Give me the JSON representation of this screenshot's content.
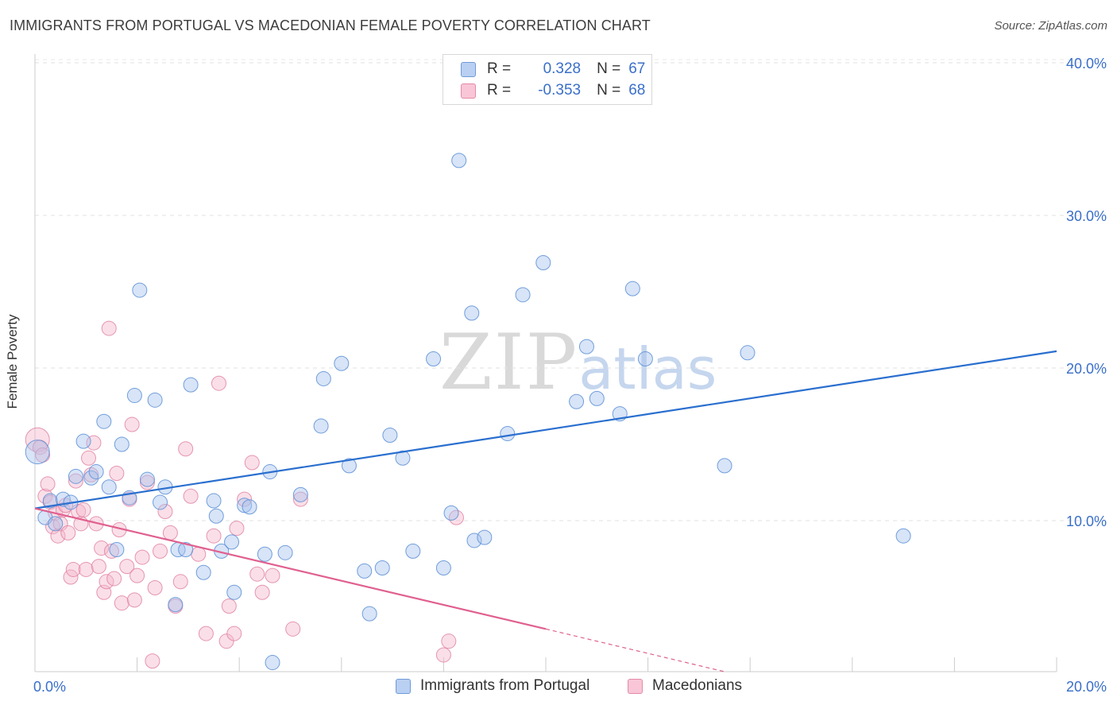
{
  "title": "IMMIGRANTS FROM PORTUGAL VS MACEDONIAN FEMALE POVERTY CORRELATION CHART",
  "source": "Source: ZipAtlas.com",
  "watermark": {
    "part1": "ZIP",
    "part2": "atlas"
  },
  "legend_top": [
    {
      "r_label": "R =",
      "r_value": "0.328",
      "n_label": "N =",
      "n_value": "67"
    },
    {
      "r_label": "R =",
      "r_value": "-0.353",
      "n_label": "N =",
      "n_value": "68"
    }
  ],
  "colors": {
    "blue": "#a8c4ee",
    "blue_stroke": "#5b8fd6",
    "blue_line": "#2a6fcf",
    "pink": "#f5b8cc",
    "pink_stroke": "#e07ea0",
    "pink_line": "#e0608f",
    "axis_text": "#3a6fc9"
  },
  "chart_data": {
    "type": "scatter",
    "title": "IMMIGRANTS FROM PORTUGAL VS MACEDONIAN FEMALE POVERTY CORRELATION CHART",
    "xlabel": "",
    "ylabel": "Female Poverty",
    "xlim": [
      0,
      20
    ],
    "ylim": [
      0,
      42
    ],
    "x_tick_labels": [
      "0.0%",
      "20.0%"
    ],
    "y_ticks": [
      10,
      20,
      30,
      40
    ],
    "y_tick_labels": [
      "10.0%",
      "20.0%",
      "30.0%",
      "40.0%"
    ],
    "series": [
      {
        "name": "Immigrants from Portugal",
        "r": 0.328,
        "n": 67,
        "trend": {
          "x": [
            0,
            20
          ],
          "y": [
            10.8,
            21.1
          ]
        },
        "points": [
          [
            0.05,
            14.5
          ],
          [
            0.2,
            10.2
          ],
          [
            0.3,
            11.3
          ],
          [
            0.4,
            9.8
          ],
          [
            0.55,
            11.4
          ],
          [
            0.7,
            11.2
          ],
          [
            0.8,
            12.9
          ],
          [
            0.95,
            15.2
          ],
          [
            1.1,
            12.8
          ],
          [
            1.2,
            13.2
          ],
          [
            1.35,
            16.5
          ],
          [
            1.45,
            12.2
          ],
          [
            1.6,
            8.1
          ],
          [
            1.7,
            15.0
          ],
          [
            1.85,
            11.5
          ],
          [
            1.95,
            18.2
          ],
          [
            2.05,
            25.1
          ],
          [
            2.2,
            12.7
          ],
          [
            2.35,
            17.9
          ],
          [
            2.45,
            11.2
          ],
          [
            2.55,
            12.2
          ],
          [
            2.8,
            8.1
          ],
          [
            2.95,
            8.1
          ],
          [
            3.05,
            18.9
          ],
          [
            3.3,
            6.6
          ],
          [
            3.5,
            11.3
          ],
          [
            3.55,
            10.3
          ],
          [
            3.65,
            8.0
          ],
          [
            3.85,
            8.6
          ],
          [
            3.9,
            5.3
          ],
          [
            4.1,
            11.0
          ],
          [
            4.2,
            10.9
          ],
          [
            4.5,
            7.8
          ],
          [
            4.6,
            13.2
          ],
          [
            4.65,
            0.7
          ],
          [
            4.9,
            7.9
          ],
          [
            5.2,
            11.7
          ],
          [
            5.6,
            16.2
          ],
          [
            5.65,
            19.3
          ],
          [
            6.0,
            20.3
          ],
          [
            6.15,
            13.6
          ],
          [
            6.45,
            6.7
          ],
          [
            6.55,
            3.9
          ],
          [
            6.8,
            6.9
          ],
          [
            6.95,
            15.6
          ],
          [
            7.2,
            14.1
          ],
          [
            7.4,
            8.0
          ],
          [
            7.8,
            20.6
          ],
          [
            8.0,
            6.9
          ],
          [
            8.15,
            10.5
          ],
          [
            8.3,
            33.6
          ],
          [
            8.55,
            23.6
          ],
          [
            8.6,
            8.7
          ],
          [
            8.8,
            8.9
          ],
          [
            9.25,
            15.7
          ],
          [
            9.55,
            24.8
          ],
          [
            9.95,
            26.9
          ],
          [
            10.6,
            17.8
          ],
          [
            10.8,
            21.4
          ],
          [
            11.0,
            18.0
          ],
          [
            11.45,
            17.0
          ],
          [
            11.7,
            25.2
          ],
          [
            11.95,
            20.6
          ],
          [
            13.5,
            13.6
          ],
          [
            13.95,
            21.0
          ],
          [
            17.0,
            9.0
          ],
          [
            2.75,
            4.5
          ]
        ]
      },
      {
        "name": "Macedonians",
        "r": -0.353,
        "n": 68,
        "trend": {
          "x": [
            0,
            10
          ],
          "y": [
            10.8,
            2.9
          ]
        },
        "trend_dashed": {
          "x": [
            10,
            13.5
          ],
          "y": [
            2.9,
            0.1
          ]
        },
        "points": [
          [
            0.05,
            15.3
          ],
          [
            0.1,
            14.8
          ],
          [
            0.15,
            14.3
          ],
          [
            0.2,
            11.6
          ],
          [
            0.25,
            12.4
          ],
          [
            0.3,
            11.2
          ],
          [
            0.35,
            9.6
          ],
          [
            0.4,
            10.5
          ],
          [
            0.45,
            9.0
          ],
          [
            0.5,
            9.8
          ],
          [
            0.55,
            10.7
          ],
          [
            0.6,
            11.0
          ],
          [
            0.65,
            9.2
          ],
          [
            0.7,
            6.3
          ],
          [
            0.75,
            6.8
          ],
          [
            0.8,
            12.6
          ],
          [
            0.85,
            10.6
          ],
          [
            0.9,
            9.8
          ],
          [
            0.95,
            10.7
          ],
          [
            1.0,
            6.8
          ],
          [
            1.05,
            14.1
          ],
          [
            1.1,
            13.0
          ],
          [
            1.15,
            15.1
          ],
          [
            1.2,
            9.8
          ],
          [
            1.25,
            7.0
          ],
          [
            1.3,
            8.2
          ],
          [
            1.35,
            5.3
          ],
          [
            1.4,
            6.0
          ],
          [
            1.45,
            22.6
          ],
          [
            1.5,
            8.0
          ],
          [
            1.55,
            6.2
          ],
          [
            1.6,
            13.1
          ],
          [
            1.65,
            9.4
          ],
          [
            1.7,
            4.6
          ],
          [
            1.8,
            7.0
          ],
          [
            1.85,
            11.4
          ],
          [
            1.9,
            16.3
          ],
          [
            1.95,
            4.8
          ],
          [
            2.0,
            6.4
          ],
          [
            2.1,
            7.6
          ],
          [
            2.2,
            12.5
          ],
          [
            2.3,
            0.8
          ],
          [
            2.35,
            5.6
          ],
          [
            2.45,
            8.0
          ],
          [
            2.55,
            10.6
          ],
          [
            2.65,
            9.2
          ],
          [
            2.75,
            4.4
          ],
          [
            2.85,
            6.0
          ],
          [
            2.95,
            14.7
          ],
          [
            3.05,
            11.6
          ],
          [
            3.2,
            7.8
          ],
          [
            3.35,
            2.6
          ],
          [
            3.5,
            9.0
          ],
          [
            3.6,
            19.0
          ],
          [
            3.75,
            2.1
          ],
          [
            3.8,
            4.4
          ],
          [
            3.95,
            9.5
          ],
          [
            4.1,
            11.4
          ],
          [
            4.25,
            13.8
          ],
          [
            4.35,
            6.5
          ],
          [
            4.45,
            5.3
          ],
          [
            4.65,
            6.4
          ],
          [
            5.05,
            2.9
          ],
          [
            5.2,
            11.4
          ],
          [
            8.0,
            1.2
          ],
          [
            8.1,
            2.1
          ],
          [
            8.25,
            10.2
          ],
          [
            3.9,
            2.6
          ]
        ]
      }
    ]
  },
  "bottom_legend": [
    {
      "label": "Immigrants from Portugal"
    },
    {
      "label": "Macedonians"
    }
  ]
}
